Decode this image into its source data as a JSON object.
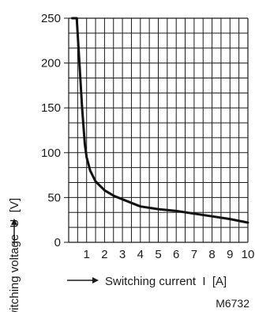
{
  "chart_data": {
    "type": "line",
    "title": "",
    "xlabel": "Switching current  I  [A]",
    "ylabel": "Switching voltage  U  [V]",
    "xlim": [
      0,
      10
    ],
    "ylim": [
      0,
      250
    ],
    "x_ticks": [
      1,
      2,
      3,
      4,
      5,
      6,
      7,
      8,
      9,
      10
    ],
    "y_ticks": [
      0,
      50,
      100,
      150,
      200,
      250
    ],
    "grid": true,
    "series": [
      {
        "name": "",
        "points": [
          [
            0.2,
            250
          ],
          [
            0.45,
            250
          ],
          [
            0.6,
            200
          ],
          [
            0.75,
            150
          ],
          [
            0.9,
            110
          ],
          [
            1.0,
            95
          ],
          [
            1.2,
            80
          ],
          [
            1.5,
            68
          ],
          [
            2.0,
            58
          ],
          [
            2.5,
            52
          ],
          [
            3.0,
            48
          ],
          [
            3.5,
            44
          ],
          [
            4.0,
            40
          ],
          [
            5.0,
            37
          ],
          [
            6.0,
            35
          ],
          [
            7.0,
            32
          ],
          [
            8.0,
            29
          ],
          [
            9.0,
            26
          ],
          [
            10.0,
            22
          ]
        ]
      }
    ]
  },
  "figure_code": "M6732"
}
